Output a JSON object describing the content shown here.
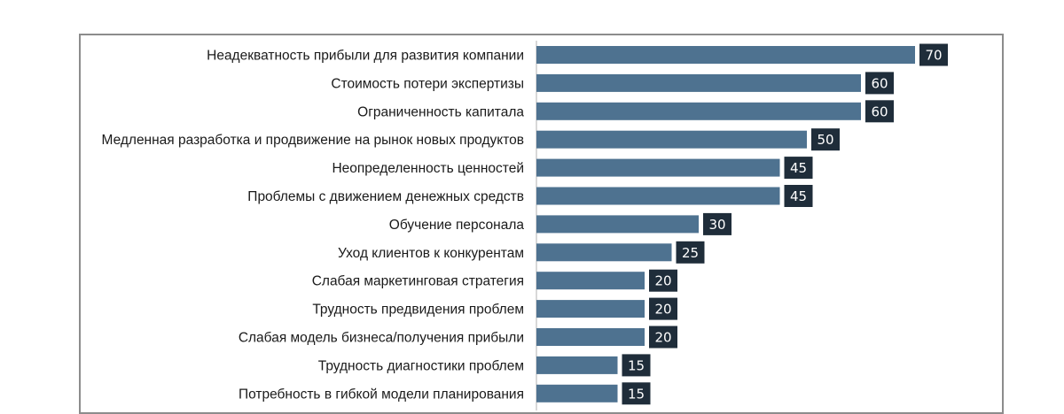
{
  "chart_data": {
    "type": "bar",
    "orientation": "horizontal",
    "title": "",
    "xlabel": "",
    "ylabel": "",
    "categories": [
      "Неадекватность прибыли для развития компании",
      "Стоимость потери экспертизы",
      "Ограниченность капитала",
      "Медленная разработка и продвижение на рынок новых продуктов",
      "Неопределенность ценностей",
      "Проблемы с движением денежных средств",
      "Обучение персонала",
      "Уход клиентов к конкурентам",
      "Слабая маркетинговая стратегия",
      "Трудность предвидения проблем",
      "Слабая модель бизнеса/получения прибыли",
      "Трудность диагностики проблем",
      "Потребность в гибкой модели планирования"
    ],
    "values": [
      70,
      60,
      60,
      50,
      45,
      45,
      30,
      25,
      20,
      20,
      20,
      15,
      15
    ],
    "xlim": [
      0,
      70
    ],
    "grid": false,
    "legend": "none",
    "colors": {
      "bar": "#4e7290",
      "label_bg": "#1f2d3a",
      "label_text": "#ffffff",
      "axis": "#bfbfbf",
      "frame": "#8c8c8c"
    }
  }
}
